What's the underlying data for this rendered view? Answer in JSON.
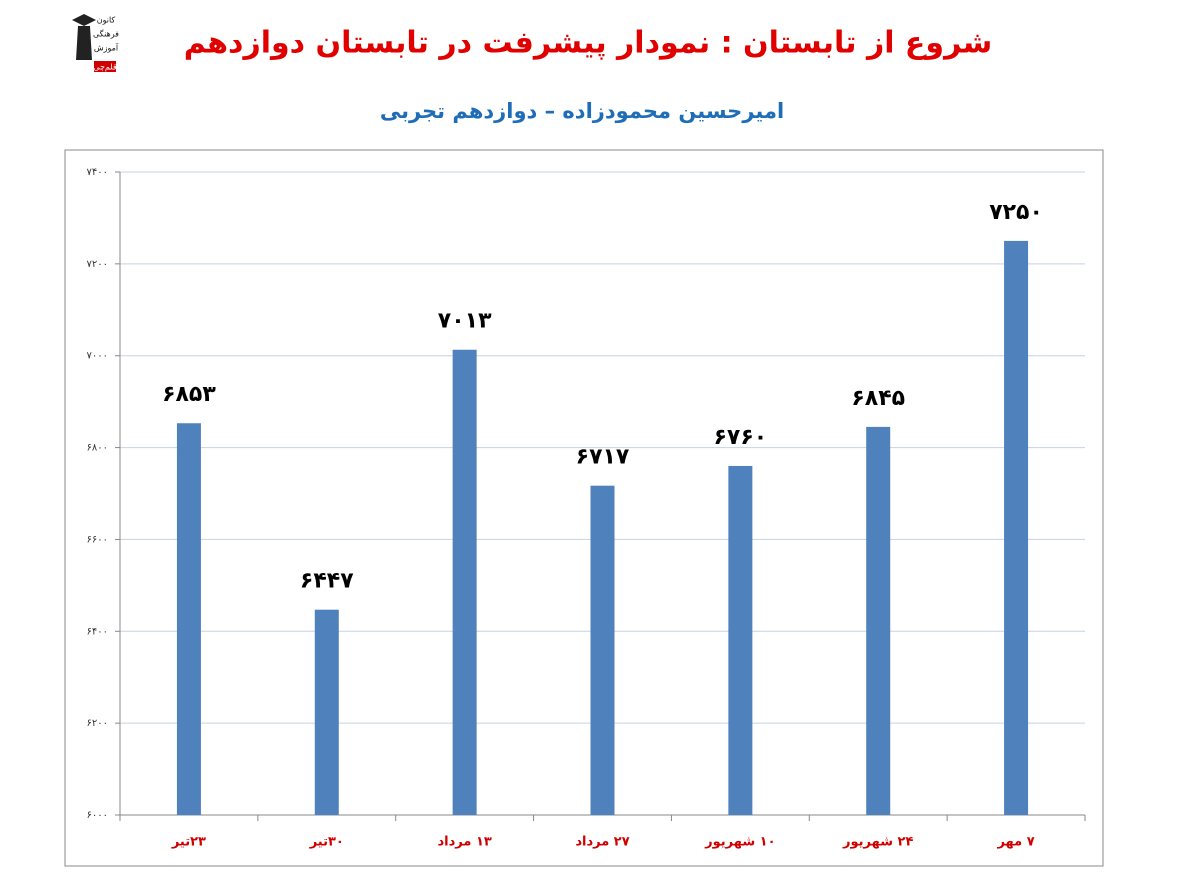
{
  "logo": {
    "lines": [
      "کانون",
      "فرهنگی",
      "آموزش",
      "قلم‌چی"
    ]
  },
  "chart_data": {
    "type": "bar",
    "title": "شروع از تابستان : نمودار پیشرفت در تابستان دوازدهم",
    "subtitle": "امیرحسین محمودزاده – دوازدهم تجربی",
    "categories": [
      "۲۳تیر",
      "۳۰تیر",
      "۱۳ مرداد",
      "۲۷ مرداد",
      "۱۰ شهریور",
      "۲۴ شهریور",
      "۷ مهر"
    ],
    "values": [
      6853,
      6447,
      7013,
      6717,
      6760,
      6845,
      7250
    ],
    "value_labels": [
      "۶۸۵۳",
      "۶۴۴۷",
      "۷۰۱۳",
      "۶۷۱۷",
      "۶۷۶۰",
      "۶۸۴۵",
      "۷۲۵۰"
    ],
    "color": "#4f81bd",
    "ylim": [
      6000,
      7400
    ],
    "yticks": [
      {
        "value": 6000,
        "label": "۶۰۰۰"
      },
      {
        "value": 6200,
        "label": "۶۲۰۰"
      },
      {
        "value": 6400,
        "label": "۶۴۰۰"
      },
      {
        "value": 6600,
        "label": "۶۶۰۰"
      },
      {
        "value": 6800,
        "label": "۶۸۰۰"
      },
      {
        "value": 7000,
        "label": "۷۰۰۰"
      },
      {
        "value": 7200,
        "label": "۷۲۰۰"
      },
      {
        "value": 7400,
        "label": "۷۴۰۰"
      }
    ],
    "grid": true
  }
}
